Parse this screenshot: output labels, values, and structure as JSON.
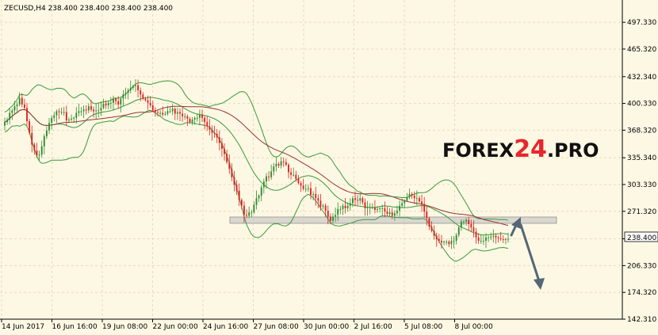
{
  "header": {
    "text": "ZECUSD,H4  238.400 238.400 238.400 238.400"
  },
  "watermark": {
    "part1": "FOREX",
    "part2": "24",
    "part3": ".PRO"
  },
  "price_tag": "238.400",
  "colors": {
    "background": "#fdf8e4",
    "grid": "#e6dcbc",
    "bull": "#2e8b2e",
    "bear": "#dd2222",
    "bollinger": "#3a9a3a",
    "moving_average": "#993333",
    "support_zone": "#bbbbbb",
    "arrow": "#556677",
    "watermark_text": "#111111",
    "watermark_accent": "#e8262d"
  },
  "chart_data": {
    "type": "candlestick",
    "symbol": "ZECUSD",
    "timeframe": "H4",
    "ylim": [
      142.31,
      524
    ],
    "y_ticks": [
      497.33,
      465.32,
      432.34,
      400.33,
      368.32,
      335.34,
      303.33,
      271.32,
      238.4,
      206.33,
      174.32,
      142.31
    ],
    "x_ticks": [
      "14 Jun 2017",
      "16 Jun 16:00",
      "19 Jun 08:00",
      "22 Jun 00:00",
      "24 Jun 16:00",
      "27 Jun 08:00",
      "30 Jun 00:00",
      "2 Jul 16:00",
      "5 Jul 08:00",
      "8 Jul 00:00"
    ],
    "bar_count": 205,
    "last_price": 238.4,
    "support_zone": [
      252,
      258
    ],
    "close": [
      378,
      381,
      389,
      392,
      397,
      399,
      407,
      399,
      395,
      379,
      365,
      351,
      344,
      338,
      339,
      349,
      361,
      368,
      377,
      383,
      386,
      391,
      390,
      390,
      390,
      380,
      381,
      382,
      383,
      389,
      391,
      391,
      393,
      392,
      397,
      393,
      391,
      392,
      392,
      395,
      400,
      398,
      401,
      401,
      406,
      403,
      399,
      406,
      411,
      413,
      416,
      419,
      421,
      422,
      416,
      411,
      406,
      404,
      401,
      398,
      392,
      390,
      389,
      389,
      387,
      388,
      391,
      391,
      394,
      388,
      390,
      388,
      385,
      385,
      382,
      378,
      381,
      383,
      383,
      387,
      383,
      378,
      373,
      369,
      365,
      364,
      360,
      353,
      346,
      340,
      330,
      322,
      312,
      303,
      296,
      285,
      278,
      267,
      266,
      270,
      270,
      279,
      287,
      290,
      300,
      307,
      313,
      312,
      319,
      325,
      328,
      326,
      331,
      330,
      327,
      318,
      315,
      315,
      310,
      305,
      302,
      298,
      298,
      299,
      291,
      292,
      287,
      284,
      277,
      278,
      272,
      265,
      260,
      265,
      267,
      274,
      274,
      278,
      275,
      278,
      281,
      287,
      285,
      284,
      287,
      282,
      275,
      276,
      276,
      276,
      273,
      274,
      275,
      275,
      271,
      268,
      270,
      266,
      269,
      272,
      278,
      281,
      284,
      288,
      292,
      290,
      287,
      287,
      283,
      280,
      271,
      263,
      253,
      248,
      242,
      238,
      236,
      234,
      235,
      235,
      232,
      236,
      236,
      243,
      252,
      259,
      259,
      261,
      256,
      252,
      247,
      240,
      236,
      236,
      236,
      240,
      240,
      241,
      242,
      240,
      239,
      238,
      237,
      238,
      238.4
    ]
  }
}
